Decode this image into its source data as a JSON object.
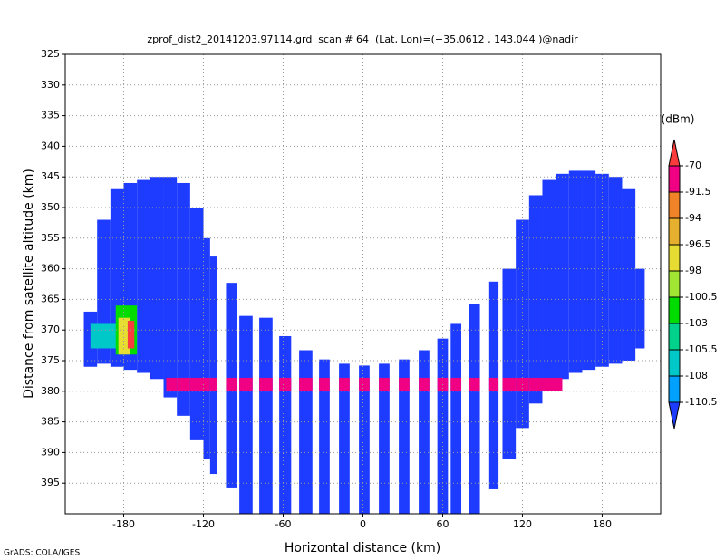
{
  "chart_data": {
    "type": "profile",
    "title": "zprof_dist2_20141203.97114.grd  scan # 64  (Lat, Lon)=(−35.0612 , 143.044 )@nadir",
    "x_label": "Horizontal distance (km)",
    "y_label": "Distance from satellite altitude (km)",
    "colorbar_label": "(dBm)",
    "credit": "GrADS: COLA/IGES",
    "xlim": [
      -224,
      224
    ],
    "xticks": [
      -180,
      -120,
      -60,
      0,
      60,
      120,
      180
    ],
    "ylim": [
      325,
      400
    ],
    "y_inverted": true,
    "yticks": [
      325,
      330,
      335,
      340,
      345,
      350,
      355,
      360,
      365,
      370,
      375,
      380,
      385,
      390,
      395
    ],
    "grid": true,
    "levels": [
      -110.5,
      -108,
      -105.5,
      -103,
      -100.5,
      -98,
      -96.5,
      -94,
      -91.5,
      -70
    ],
    "colors": [
      "#1e3cff",
      "#00a0ff",
      "#00c8c8",
      "#00d28c",
      "#00dc00",
      "#a0e632",
      "#e6dc32",
      "#e6af2d",
      "#f08228",
      "#f00082",
      "#fa3c3c"
    ],
    "columns": [
      {
        "x0": -210,
        "x1": -200,
        "top": 367,
        "bottom": 376
      },
      {
        "x0": -200,
        "x1": -190,
        "top": 352,
        "bottom": 375.5
      },
      {
        "x0": -190,
        "x1": -180,
        "top": 347,
        "bottom": 376
      },
      {
        "x0": -180,
        "x1": -170,
        "top": 346,
        "bottom": 376.5
      },
      {
        "x0": -170,
        "x1": -160,
        "top": 345.5,
        "bottom": 377
      },
      {
        "x0": -160,
        "x1": -150,
        "top": 345,
        "bottom": 378
      },
      {
        "x0": -150,
        "x1": -140,
        "top": 345,
        "bottom": 381
      },
      {
        "x0": -140,
        "x1": -130,
        "top": 346,
        "bottom": 384
      },
      {
        "x0": -130,
        "x1": -120,
        "top": 350,
        "bottom": 388
      },
      {
        "x0": -120,
        "x1": -115,
        "top": 355,
        "bottom": 391
      },
      {
        "x0": -115,
        "x1": -110,
        "top": 358,
        "bottom": 393.5
      },
      {
        "x0": -103,
        "x1": -95,
        "top": 362.3,
        "bottom": 395.7
      },
      {
        "x0": -93,
        "x1": -83,
        "top": 367.7,
        "bottom": 400
      },
      {
        "x0": -78,
        "x1": -68,
        "top": 368,
        "bottom": 400
      },
      {
        "x0": -63,
        "x1": -54,
        "top": 371,
        "bottom": 400
      },
      {
        "x0": -48,
        "x1": -38,
        "top": 373.3,
        "bottom": 400
      },
      {
        "x0": -33,
        "x1": -25,
        "top": 374.8,
        "bottom": 400
      },
      {
        "x0": -18,
        "x1": -10,
        "top": 375.5,
        "bottom": 400
      },
      {
        "x0": -3,
        "x1": 5,
        "top": 375.8,
        "bottom": 400
      },
      {
        "x0": 12,
        "x1": 20,
        "top": 375.5,
        "bottom": 400
      },
      {
        "x0": 27,
        "x1": 35,
        "top": 374.8,
        "bottom": 400
      },
      {
        "x0": 42,
        "x1": 50,
        "top": 373.3,
        "bottom": 400
      },
      {
        "x0": 56,
        "x1": 64,
        "top": 371.4,
        "bottom": 400
      },
      {
        "x0": 66,
        "x1": 74,
        "top": 369,
        "bottom": 400
      },
      {
        "x0": 80,
        "x1": 88,
        "top": 365.8,
        "bottom": 400
      },
      {
        "x0": 95,
        "x1": 102,
        "top": 362.1,
        "bottom": 396
      },
      {
        "x0": 105,
        "x1": 115,
        "top": 360,
        "bottom": 391
      },
      {
        "x0": 115,
        "x1": 125,
        "top": 352,
        "bottom": 386
      },
      {
        "x0": 125,
        "x1": 135,
        "top": 348,
        "bottom": 382
      },
      {
        "x0": 135,
        "x1": 145,
        "top": 345.5,
        "bottom": 380
      },
      {
        "x0": 145,
        "x1": 155,
        "top": 344.5,
        "bottom": 378
      },
      {
        "x0": 155,
        "x1": 165,
        "top": 344,
        "bottom": 377
      },
      {
        "x0": 165,
        "x1": 175,
        "top": 344,
        "bottom": 376.5
      },
      {
        "x0": 175,
        "x1": 185,
        "top": 344.5,
        "bottom": 376
      },
      {
        "x0": 185,
        "x1": 195,
        "top": 345,
        "bottom": 375.5
      },
      {
        "x0": 195,
        "x1": 205,
        "top": 347,
        "bottom": 375
      },
      {
        "x0": 205,
        "x1": 212,
        "top": 360,
        "bottom": 373
      }
    ],
    "surface": {
      "x0": -148,
      "x1": 150,
      "top": 377.8,
      "bottom": 380,
      "color": "#f00082"
    },
    "features": [
      {
        "x0": -205,
        "x1": -185,
        "top": 369,
        "bottom": 373,
        "color": "#00c8c8"
      },
      {
        "x0": -186,
        "x1": -170,
        "top": 366,
        "bottom": 374,
        "color": "#00dc00"
      },
      {
        "x0": -184,
        "x1": -175,
        "top": 368,
        "bottom": 374,
        "color": "#e6dc32"
      },
      {
        "x0": -177,
        "x1": -172,
        "top": 368.5,
        "bottom": 373,
        "color": "#fa3c3c"
      }
    ]
  }
}
